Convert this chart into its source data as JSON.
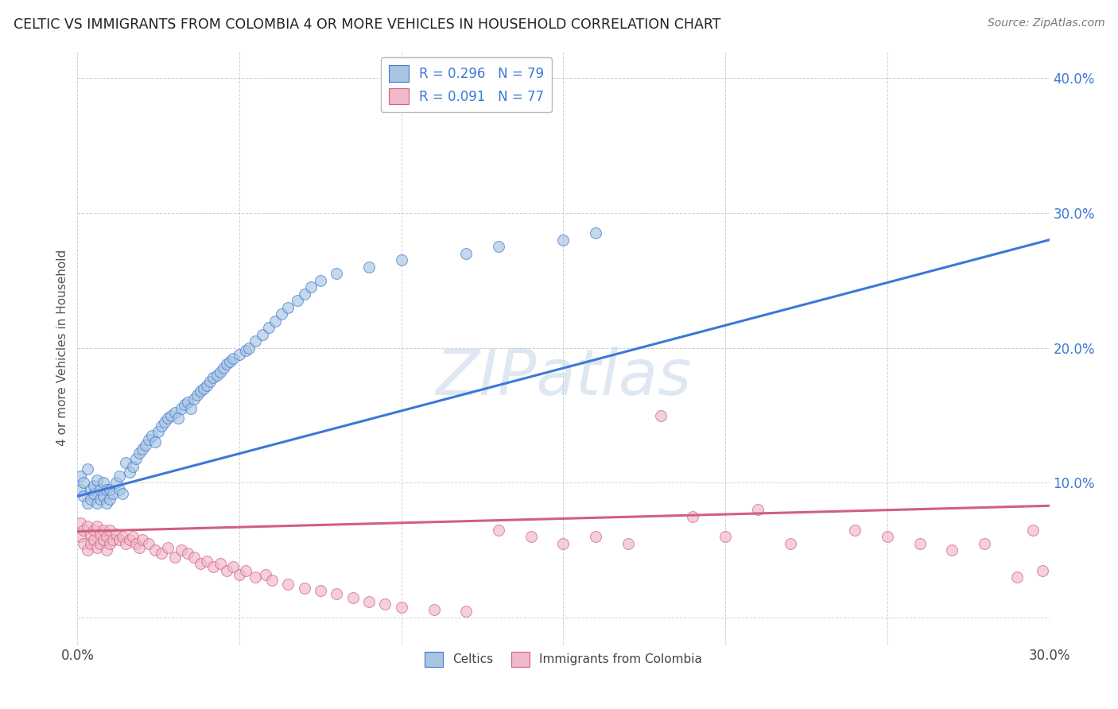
{
  "title": "CELTIC VS IMMIGRANTS FROM COLOMBIA 4 OR MORE VEHICLES IN HOUSEHOLD CORRELATION CHART",
  "source_text": "Source: ZipAtlas.com",
  "ylabel": "4 or more Vehicles in Household",
  "xlim": [
    0.0,
    0.3
  ],
  "ylim": [
    -0.02,
    0.42
  ],
  "xticks": [
    0.0,
    0.05,
    0.1,
    0.15,
    0.2,
    0.25,
    0.3
  ],
  "xtick_labels": [
    "0.0%",
    "",
    "",
    "",
    "",
    "",
    "30.0%"
  ],
  "yticks": [
    0.0,
    0.1,
    0.2,
    0.3,
    0.4
  ],
  "ytick_labels": [
    "",
    "10.0%",
    "20.0%",
    "30.0%",
    "40.0%"
  ],
  "blue_R": 0.296,
  "blue_N": 79,
  "pink_R": 0.091,
  "pink_N": 77,
  "legend_label_blue": "Celtics",
  "legend_label_pink": "Immigrants from Colombia",
  "blue_fill_color": "#a8c4e0",
  "pink_fill_color": "#f0b8c8",
  "blue_line_color": "#3c78d8",
  "pink_line_color": "#d06080",
  "watermark": "ZIPatlas",
  "blue_line_x0": 0.0,
  "blue_line_y0": 0.09,
  "blue_line_x1": 0.3,
  "blue_line_y1": 0.28,
  "pink_line_x0": 0.0,
  "pink_line_y0": 0.064,
  "pink_line_x1": 0.3,
  "pink_line_y1": 0.083,
  "blue_scatter_x": [
    0.001,
    0.001,
    0.002,
    0.002,
    0.003,
    0.003,
    0.004,
    0.004,
    0.005,
    0.005,
    0.006,
    0.006,
    0.007,
    0.007,
    0.008,
    0.008,
    0.009,
    0.009,
    0.01,
    0.01,
    0.011,
    0.012,
    0.013,
    0.013,
    0.014,
    0.015,
    0.016,
    0.017,
    0.018,
    0.019,
    0.02,
    0.021,
    0.022,
    0.023,
    0.024,
    0.025,
    0.026,
    0.027,
    0.028,
    0.029,
    0.03,
    0.031,
    0.032,
    0.033,
    0.034,
    0.035,
    0.036,
    0.037,
    0.038,
    0.039,
    0.04,
    0.041,
    0.042,
    0.043,
    0.044,
    0.045,
    0.046,
    0.047,
    0.048,
    0.05,
    0.052,
    0.053,
    0.055,
    0.057,
    0.059,
    0.061,
    0.063,
    0.065,
    0.068,
    0.07,
    0.072,
    0.075,
    0.08,
    0.09,
    0.1,
    0.12,
    0.13,
    0.15,
    0.16
  ],
  "blue_scatter_y": [
    0.095,
    0.105,
    0.09,
    0.1,
    0.085,
    0.11,
    0.088,
    0.095,
    0.092,
    0.098,
    0.085,
    0.102,
    0.088,
    0.095,
    0.09,
    0.1,
    0.085,
    0.095,
    0.088,
    0.095,
    0.092,
    0.1,
    0.095,
    0.105,
    0.092,
    0.115,
    0.108,
    0.112,
    0.118,
    0.122,
    0.125,
    0.128,
    0.132,
    0.135,
    0.13,
    0.138,
    0.142,
    0.145,
    0.148,
    0.15,
    0.152,
    0.148,
    0.155,
    0.158,
    0.16,
    0.155,
    0.162,
    0.165,
    0.168,
    0.17,
    0.172,
    0.175,
    0.178,
    0.18,
    0.182,
    0.185,
    0.188,
    0.19,
    0.192,
    0.195,
    0.198,
    0.2,
    0.205,
    0.21,
    0.215,
    0.22,
    0.225,
    0.23,
    0.235,
    0.24,
    0.245,
    0.25,
    0.255,
    0.26,
    0.265,
    0.27,
    0.275,
    0.28,
    0.285
  ],
  "pink_scatter_x": [
    0.001,
    0.001,
    0.002,
    0.002,
    0.003,
    0.003,
    0.004,
    0.004,
    0.005,
    0.005,
    0.006,
    0.006,
    0.007,
    0.007,
    0.008,
    0.008,
    0.009,
    0.009,
    0.01,
    0.01,
    0.011,
    0.012,
    0.013,
    0.014,
    0.015,
    0.016,
    0.017,
    0.018,
    0.019,
    0.02,
    0.022,
    0.024,
    0.026,
    0.028,
    0.03,
    0.032,
    0.034,
    0.036,
    0.038,
    0.04,
    0.042,
    0.044,
    0.046,
    0.048,
    0.05,
    0.052,
    0.055,
    0.058,
    0.06,
    0.065,
    0.07,
    0.075,
    0.08,
    0.085,
    0.09,
    0.095,
    0.1,
    0.11,
    0.12,
    0.13,
    0.14,
    0.15,
    0.16,
    0.17,
    0.18,
    0.19,
    0.2,
    0.21,
    0.22,
    0.24,
    0.25,
    0.26,
    0.27,
    0.28,
    0.29,
    0.295,
    0.298
  ],
  "pink_scatter_y": [
    0.06,
    0.07,
    0.055,
    0.065,
    0.05,
    0.068,
    0.055,
    0.062,
    0.058,
    0.065,
    0.052,
    0.068,
    0.055,
    0.062,
    0.058,
    0.065,
    0.05,
    0.06,
    0.055,
    0.065,
    0.058,
    0.062,
    0.058,
    0.06,
    0.055,
    0.058,
    0.06,
    0.055,
    0.052,
    0.058,
    0.055,
    0.05,
    0.048,
    0.052,
    0.045,
    0.05,
    0.048,
    0.045,
    0.04,
    0.042,
    0.038,
    0.04,
    0.035,
    0.038,
    0.032,
    0.035,
    0.03,
    0.032,
    0.028,
    0.025,
    0.022,
    0.02,
    0.018,
    0.015,
    0.012,
    0.01,
    0.008,
    0.006,
    0.005,
    0.065,
    0.06,
    0.055,
    0.06,
    0.055,
    0.15,
    0.075,
    0.06,
    0.08,
    0.055,
    0.065,
    0.06,
    0.055,
    0.05,
    0.055,
    0.03,
    0.065,
    0.035
  ]
}
